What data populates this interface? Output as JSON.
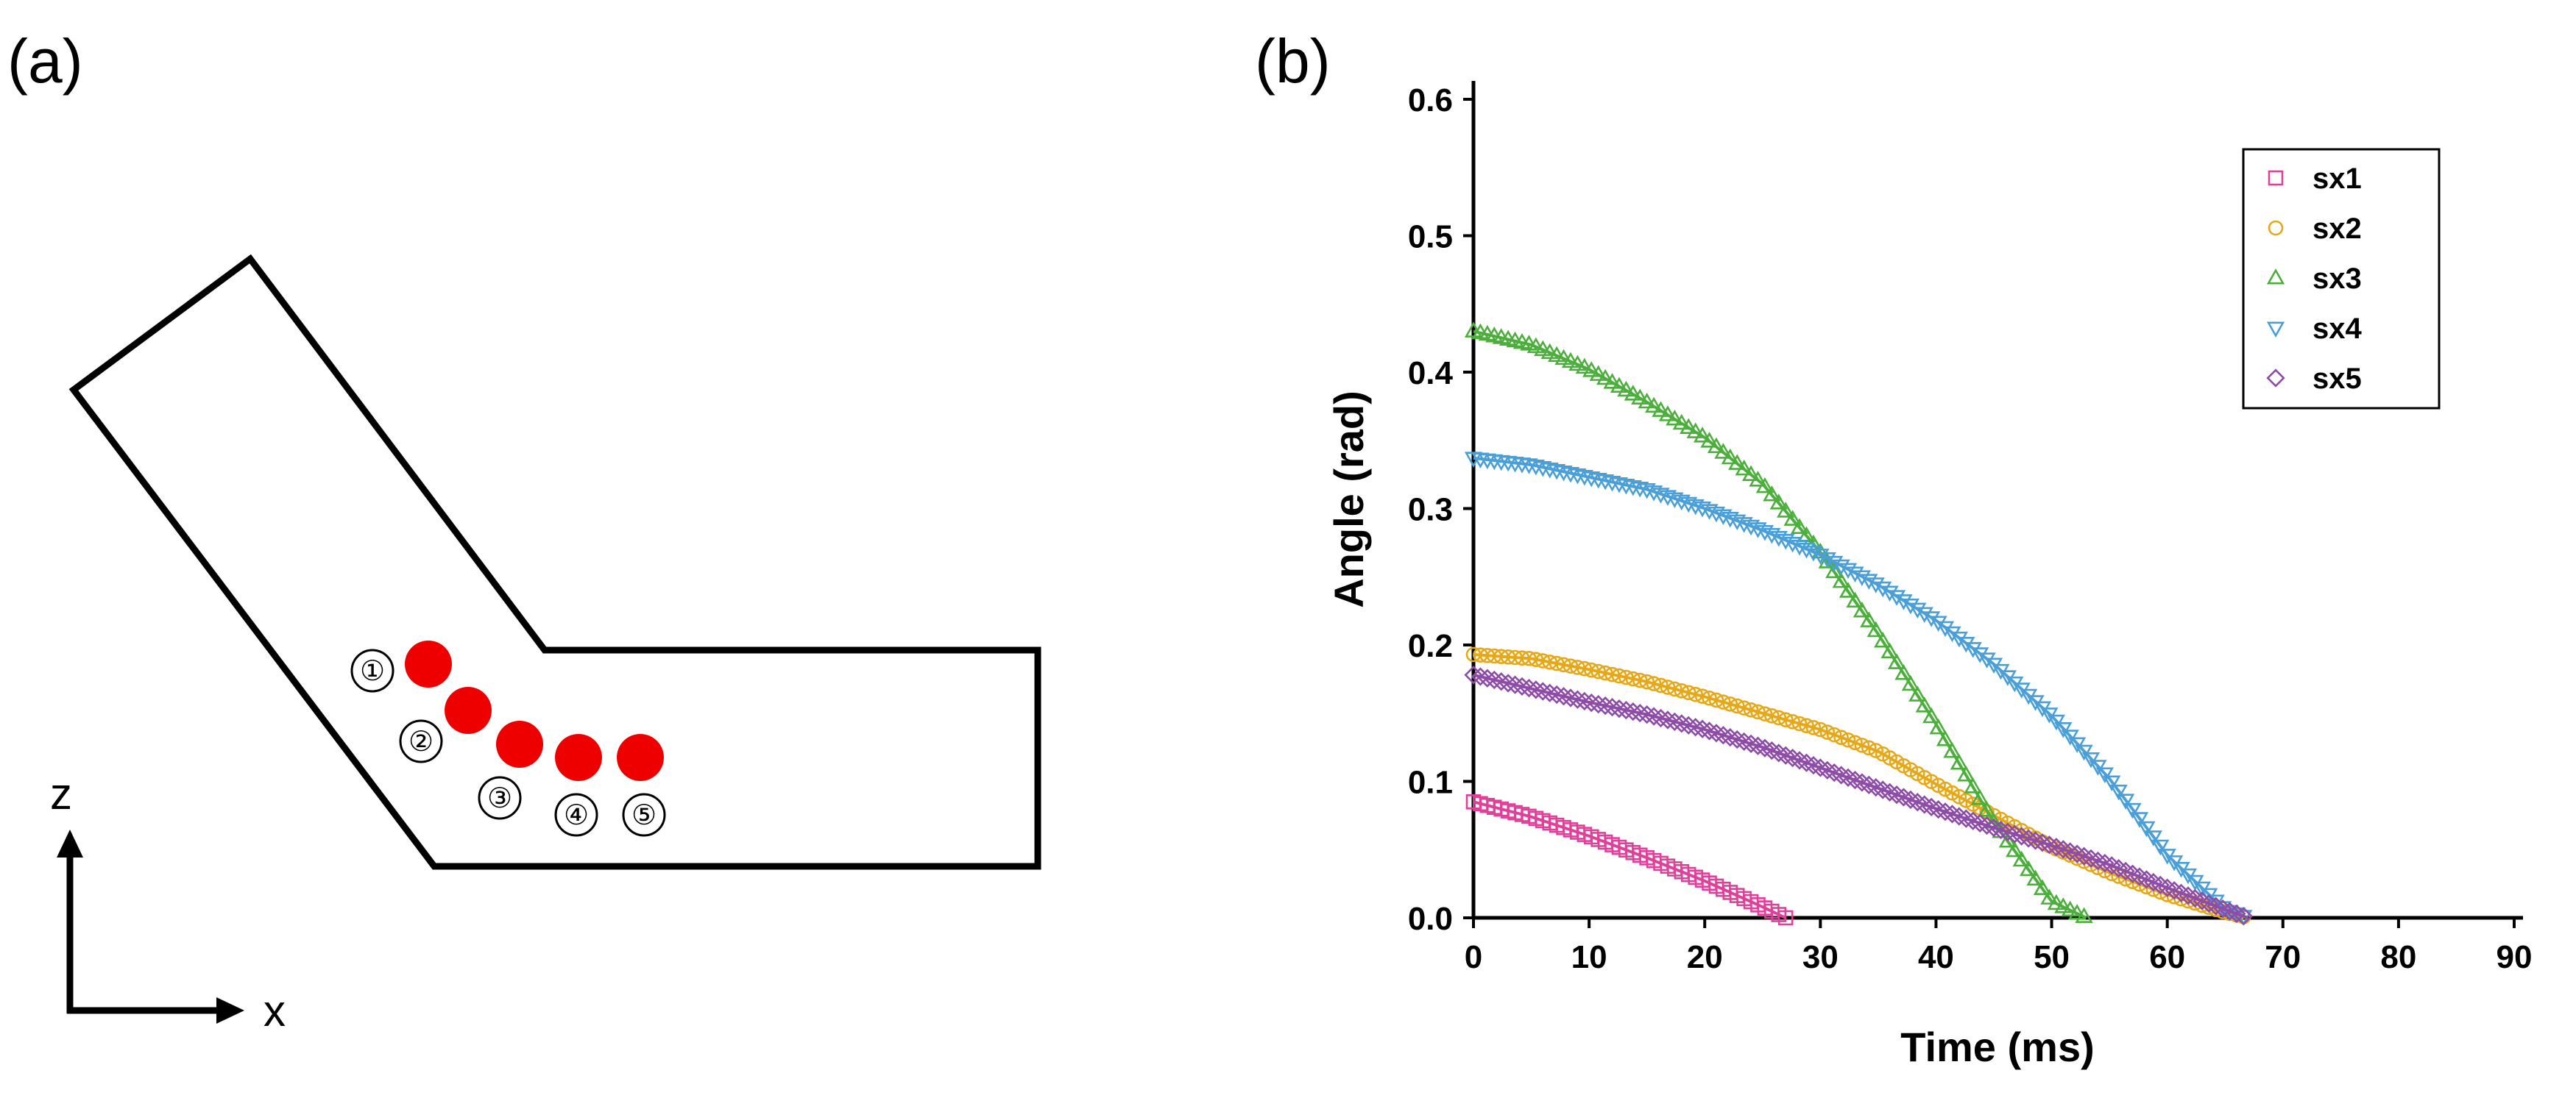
{
  "panel_a": {
    "label": "(a)",
    "axis_z": "z",
    "axis_x": "x",
    "markers": [
      "①",
      "②",
      "③",
      "④",
      "⑤"
    ],
    "particle_color": "#ee0000"
  },
  "panel_b": {
    "label": "(b)"
  },
  "chart_data": {
    "type": "scatter",
    "title": "",
    "xlabel": "Time (ms)",
    "ylabel": "Angle (rad)",
    "xlim": [
      0,
      90
    ],
    "ylim": [
      0,
      0.6
    ],
    "xticks": [
      0,
      10,
      20,
      30,
      40,
      50,
      60,
      70,
      80,
      90
    ],
    "yticks": [
      0.0,
      0.1,
      0.2,
      0.3,
      0.4,
      0.5,
      0.6
    ],
    "xtick_labels": [
      "0",
      "10",
      "20",
      "30",
      "40",
      "50",
      "60",
      "70",
      "80",
      "90"
    ],
    "ytick_labels": [
      "0.0",
      "0.1",
      "0.2",
      "0.3",
      "0.4",
      "0.5",
      "0.6"
    ],
    "grid": false,
    "legend_position": "top-right",
    "series": [
      {
        "name": "sx1",
        "marker": "square",
        "color": "#e0409a",
        "points": [
          [
            0,
            0.085
          ],
          [
            5,
            0.074
          ],
          [
            10,
            0.06
          ],
          [
            15,
            0.044
          ],
          [
            20,
            0.027
          ],
          [
            25,
            0.008
          ],
          [
            27,
            0.0
          ]
        ]
      },
      {
        "name": "sx2",
        "marker": "circle",
        "color": "#e6a817",
        "points": [
          [
            0,
            0.193
          ],
          [
            5,
            0.19
          ],
          [
            10,
            0.182
          ],
          [
            15,
            0.173
          ],
          [
            20,
            0.162
          ],
          [
            25,
            0.15
          ],
          [
            30,
            0.138
          ],
          [
            35,
            0.122
          ],
          [
            40,
            0.098
          ],
          [
            45,
            0.075
          ],
          [
            50,
            0.052
          ],
          [
            55,
            0.033
          ],
          [
            60,
            0.017
          ],
          [
            65,
            0.004
          ],
          [
            67,
            0.0
          ]
        ]
      },
      {
        "name": "sx3",
        "marker": "triangle-up",
        "color": "#4caf3c",
        "points": [
          [
            0,
            0.43
          ],
          [
            5,
            0.42
          ],
          [
            10,
            0.402
          ],
          [
            15,
            0.378
          ],
          [
            20,
            0.352
          ],
          [
            25,
            0.318
          ],
          [
            30,
            0.268
          ],
          [
            35,
            0.208
          ],
          [
            40,
            0.142
          ],
          [
            45,
            0.07
          ],
          [
            50,
            0.012
          ],
          [
            53,
            0.0
          ]
        ]
      },
      {
        "name": "sx4",
        "marker": "triangle-down",
        "color": "#4a9fd8",
        "points": [
          [
            0,
            0.337
          ],
          [
            5,
            0.332
          ],
          [
            10,
            0.323
          ],
          [
            15,
            0.314
          ],
          [
            20,
            0.3
          ],
          [
            25,
            0.284
          ],
          [
            30,
            0.266
          ],
          [
            35,
            0.244
          ],
          [
            40,
            0.218
          ],
          [
            45,
            0.186
          ],
          [
            50,
            0.148
          ],
          [
            55,
            0.102
          ],
          [
            60,
            0.046
          ],
          [
            65,
            0.006
          ],
          [
            67,
            0.0
          ]
        ]
      },
      {
        "name": "sx5",
        "marker": "diamond",
        "color": "#8e4ca8",
        "points": [
          [
            0,
            0.178
          ],
          [
            5,
            0.168
          ],
          [
            10,
            0.158
          ],
          [
            15,
            0.149
          ],
          [
            20,
            0.138
          ],
          [
            25,
            0.125
          ],
          [
            30,
            0.11
          ],
          [
            35,
            0.095
          ],
          [
            40,
            0.08
          ],
          [
            45,
            0.066
          ],
          [
            50,
            0.053
          ],
          [
            55,
            0.039
          ],
          [
            60,
            0.022
          ],
          [
            65,
            0.006
          ],
          [
            67,
            0.0
          ]
        ]
      }
    ]
  }
}
